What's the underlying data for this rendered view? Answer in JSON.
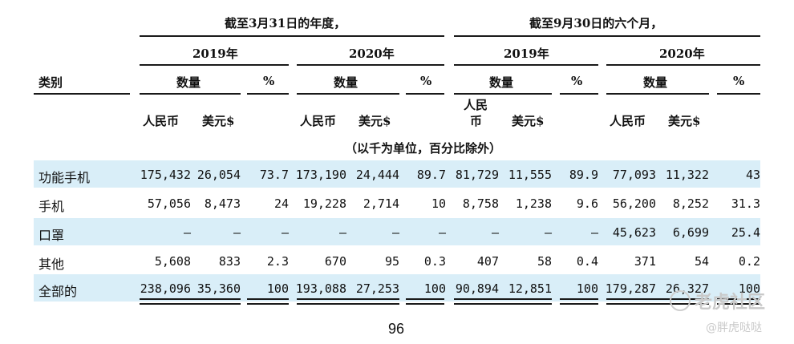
{
  "headers": {
    "fy_title": "截至3月31日的年度，",
    "six_month_title": "截至9月30日的六个月，",
    "y1": "2019年",
    "y2": "2020年",
    "y3": "2019年",
    "y4": "2020年",
    "category": "类别",
    "quantity": "数量",
    "percent": "%",
    "rmb": "人民币",
    "usd": "美元$",
    "rmb_split_1": "人民",
    "rmb_split_2": "币",
    "unit_note": "（以千为单位，百分比除外）"
  },
  "rows": [
    {
      "category": "功能手机",
      "values": [
        "175,432",
        "26,054",
        "73.7",
        "173,190",
        "24,444",
        "89.7",
        "81,729",
        "11,555",
        "89.9",
        "77,093",
        "11,322",
        "43"
      ]
    },
    {
      "category": "手机",
      "values": [
        "57,056",
        "8,473",
        "24",
        "19,228",
        "2,714",
        "10",
        "8,758",
        "1,238",
        "9.6",
        "56,200",
        "8,252",
        "31.3"
      ]
    },
    {
      "category": "口罩",
      "values": [
        "–",
        "–",
        "–",
        "–",
        "–",
        "–",
        "–",
        "–",
        "–",
        "45,623",
        "6,699",
        "25.4"
      ]
    },
    {
      "category": "其他",
      "values": [
        "5,608",
        "833",
        "2.3",
        "670",
        "95",
        "0.3",
        "407",
        "58",
        "0.4",
        "371",
        "54",
        "0.2"
      ]
    },
    {
      "category": "全部的",
      "values": [
        "238,096",
        "35,360",
        "100",
        "193,088",
        "27,253",
        "100",
        "90,894",
        "12,851",
        "100",
        "179,287",
        "26,327",
        "100"
      ]
    }
  ],
  "page_number": "96",
  "watermark": {
    "main": "老虎社区",
    "sub": "@胖虎哒哒"
  }
}
